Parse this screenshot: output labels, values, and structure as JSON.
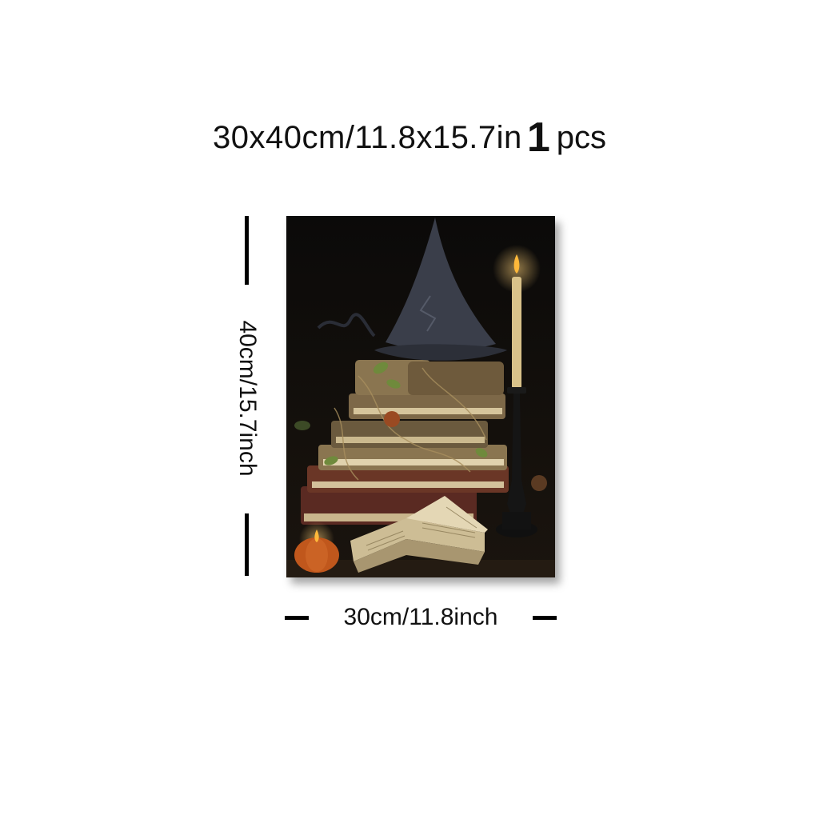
{
  "headline": {
    "size_text": "30x40cm/11.8x15.7in",
    "quantity": "1",
    "quantity_unit": "pcs"
  },
  "dimensions": {
    "height_label": "40cm/15.7inch",
    "width_label": "30cm/11.8inch"
  },
  "artwork": {
    "subject_icons": [
      "witch-hat-icon",
      "book-stack-icon",
      "candle-icon",
      "pumpkin-icon",
      "open-book-icon"
    ],
    "colors": {
      "background": "#0d0b09",
      "hat": "#3a3e4a",
      "book_tan": "#8a7550",
      "book_red": "#5a2a22",
      "candle": "#d9c28a",
      "flame": "#ffb83a",
      "pumpkin": "#c0571c"
    }
  }
}
